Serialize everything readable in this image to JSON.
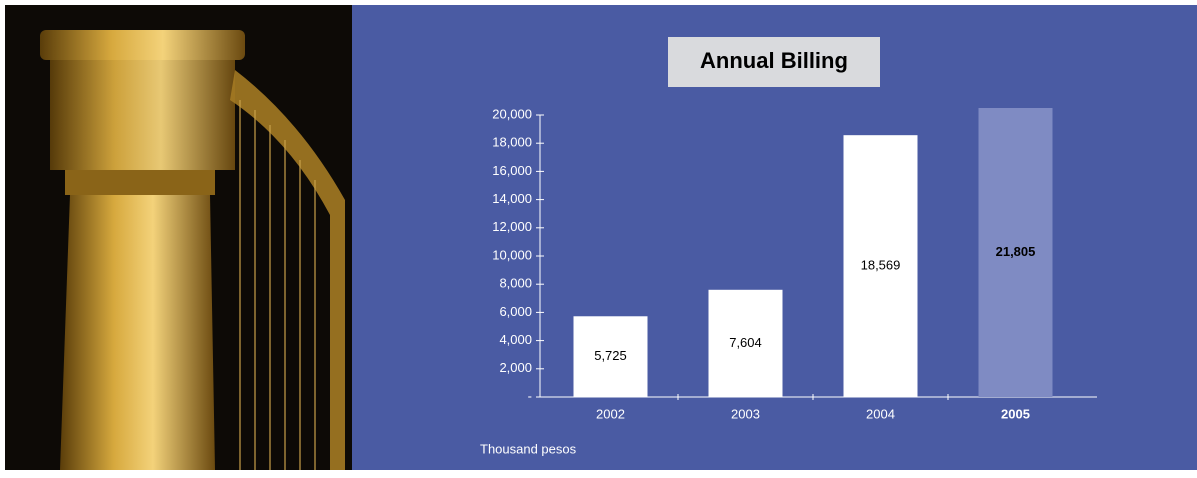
{
  "chart_data": {
    "type": "bar",
    "title": "Annual Billing",
    "categories": [
      "2002",
      "2003",
      "2004",
      "2005"
    ],
    "values": [
      5725,
      7604,
      18569,
      21805
    ],
    "value_labels": [
      "5,725",
      "7,604",
      "18,569",
      "21,805"
    ],
    "colors": [
      "#ffffff",
      "#ffffff",
      "#ffffff",
      "#7f8bc3"
    ],
    "bold": [
      false,
      false,
      false,
      true
    ],
    "ylim": [
      0,
      20000
    ],
    "yticks": [
      {
        "value": 0,
        "label": "-"
      },
      {
        "value": 2000,
        "label": "2,000"
      },
      {
        "value": 4000,
        "label": "4,000"
      },
      {
        "value": 6000,
        "label": "6,000"
      },
      {
        "value": 8000,
        "label": "8,000"
      },
      {
        "value": 10000,
        "label": "10,000"
      },
      {
        "value": 12000,
        "label": "12,000"
      },
      {
        "value": 14000,
        "label": "14,000"
      },
      {
        "value": 16000,
        "label": "16,000"
      },
      {
        "value": 18000,
        "label": "18,000"
      },
      {
        "value": 20000,
        "label": "20,000"
      }
    ],
    "unit_note": "Thousand pesos"
  }
}
